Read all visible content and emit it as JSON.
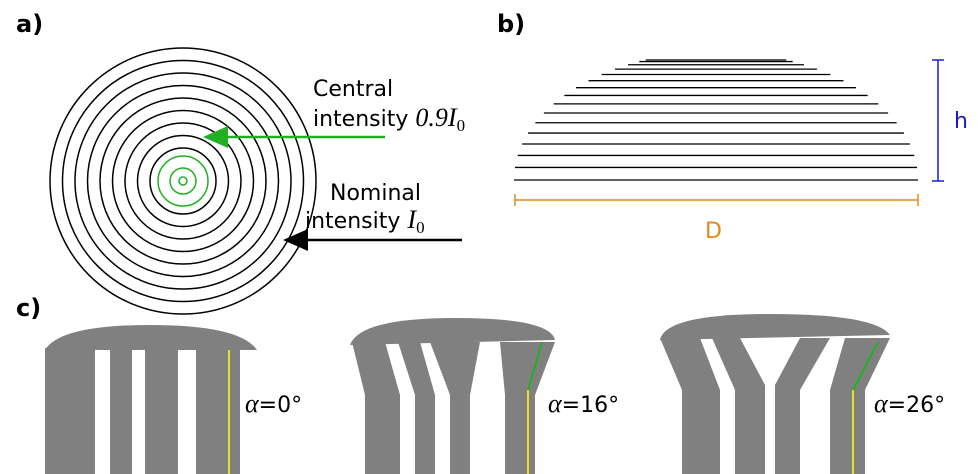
{
  "panel_a": {
    "label": "a)",
    "central": {
      "line1": "Central",
      "line2": "intensity",
      "factor": "0.9",
      "symbol": "I",
      "subscript": "0"
    },
    "nominal": {
      "line1": "Nominal",
      "line2": "intensity",
      "symbol": "I",
      "subscript": "0"
    }
  },
  "panel_b": {
    "label": "b)",
    "height": "h",
    "diameter": "D"
  },
  "panel_c": {
    "label": "c)",
    "angles": [
      {
        "symbol": "α",
        "text": "=0°"
      },
      {
        "symbol": "α",
        "text": "=16°"
      },
      {
        "symbol": "α",
        "text": "=26°"
      }
    ]
  }
}
